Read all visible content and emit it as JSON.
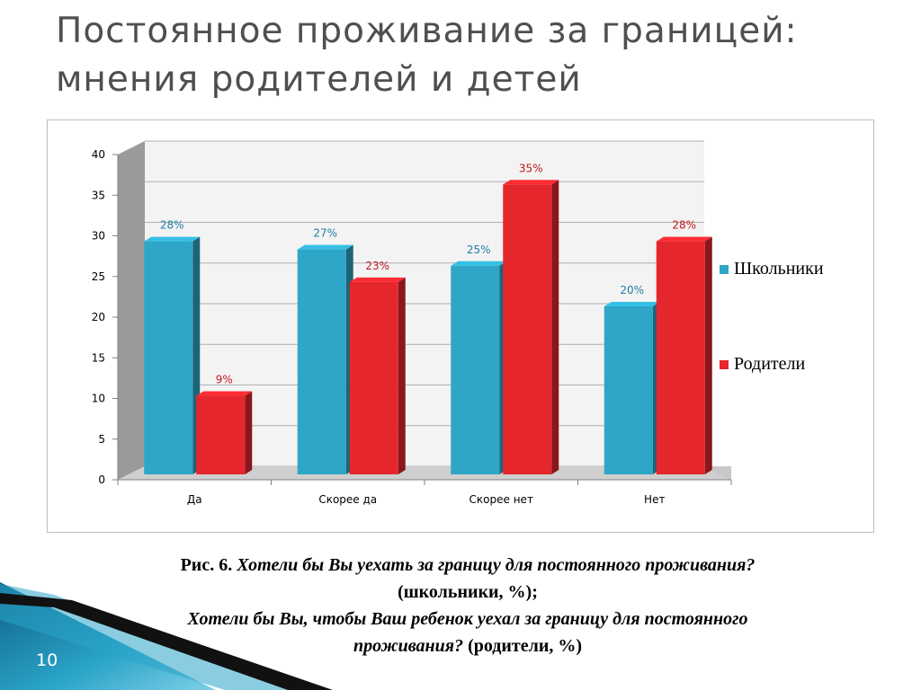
{
  "slide": {
    "title_line1": "Постоянное проживание за границей:",
    "title_line2": "мнения родителей и детей",
    "page_number": "10"
  },
  "caption": {
    "prefix": "Рис. 6.",
    "question1": "Хотели бы Вы уехать за границу для постоянного проживания?",
    "suffix1": "(школьники, %);",
    "question2": "Хотели бы Вы, чтобы Ваш ребенок уехал за границу для постоянного проживания?",
    "suffix2": "(родители, %)"
  },
  "chart_data": {
    "type": "bar",
    "categories": [
      "Да",
      "Скорее да",
      "Скорее нет",
      "Нет"
    ],
    "series": [
      {
        "name": "Школьники",
        "values": [
          28,
          27,
          25,
          20
        ],
        "labels": [
          "28%",
          "27%",
          "25%",
          "20%"
        ],
        "color": "#2fa6c7",
        "label_color": "#1f7fa6"
      },
      {
        "name": "Родители",
        "values": [
          9,
          23,
          35,
          28
        ],
        "labels": [
          "9%",
          "23%",
          "35%",
          "28%"
        ],
        "color": "#e5262d",
        "label_color": "#c0181f"
      }
    ],
    "yticks": [
      "0",
      "5",
      "10",
      "15",
      "20",
      "25",
      "30",
      "35",
      "40"
    ],
    "ylim": [
      0,
      40
    ],
    "legend_position": "right",
    "grid": true
  },
  "colors": {
    "title": "#4f4f4f",
    "deco_blue": "#1b8fb3",
    "deco_dark": "#111111"
  }
}
